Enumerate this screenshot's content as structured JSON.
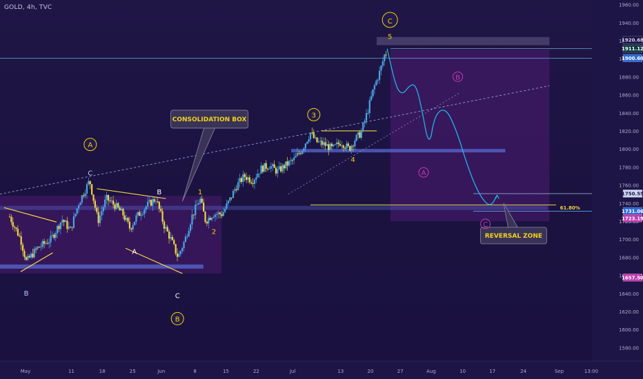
{
  "header": {
    "symbol": "GOLD, 4h, TVC"
  },
  "colors": {
    "bull": "#4aa8e8",
    "bear": "#f0d545",
    "wave": "#f5d400",
    "level": "#5a6fd8",
    "path": "#1fb5e8",
    "zone": "#4a1a6e",
    "magenta": "#c03cb0"
  },
  "chart_data": {
    "type": "candlestick",
    "title": "",
    "xlabel": "",
    "ylabel": "",
    "ylim": [
      1565,
      1965
    ],
    "grid": false,
    "y_ticks": [
      1580,
      1600,
      1620,
      1640,
      1660,
      1680,
      1700,
      1720,
      1740,
      1760,
      1780,
      1800,
      1820,
      1840,
      1860,
      1880,
      1900,
      1920,
      1940,
      1960
    ],
    "y_tick_labels": [
      "1580.00",
      "1600.00",
      "1620.00",
      "1640.00",
      "1660.00",
      "1680.00",
      "1700.00",
      "1720.00",
      "1740.00",
      "1760.00",
      "1780.00",
      "1800.00",
      "1820.00",
      "1840.00",
      "1860.00",
      "1880.00",
      "1900.00",
      "1920.00",
      "1940.00",
      "1960.00"
    ],
    "x_ticks": [
      {
        "label": "May",
        "pos": 0.0
      },
      {
        "label": "11",
        "pos": 0.083
      },
      {
        "label": "18",
        "pos": 0.139
      },
      {
        "label": "25",
        "pos": 0.194
      },
      {
        "label": "Jun",
        "pos": 0.246
      },
      {
        "label": "8",
        "pos": 0.307
      },
      {
        "label": "15",
        "pos": 0.363
      },
      {
        "label": "22",
        "pos": 0.418
      },
      {
        "label": "Jul",
        "pos": 0.484
      },
      {
        "label": "13",
        "pos": 0.571
      },
      {
        "label": "20",
        "pos": 0.625
      },
      {
        "label": "27",
        "pos": 0.679
      },
      {
        "label": "Aug",
        "pos": 0.735
      },
      {
        "label": "10",
        "pos": 0.792
      },
      {
        "label": "17",
        "pos": 0.846
      },
      {
        "label": "24",
        "pos": 0.902
      },
      {
        "label": "Sep",
        "pos": 0.967
      },
      {
        "label": "13:00",
        "pos": 1.025
      }
    ],
    "price_path": [
      [
        0.0,
        1725
      ],
      [
        0.02,
        1700
      ],
      [
        0.03,
        1675
      ],
      [
        0.05,
        1690
      ],
      [
        0.075,
        1700
      ],
      [
        0.095,
        1722
      ],
      [
        0.11,
        1710
      ],
      [
        0.125,
        1740
      ],
      [
        0.145,
        1765
      ],
      [
        0.16,
        1720
      ],
      [
        0.175,
        1745
      ],
      [
        0.19,
        1738
      ],
      [
        0.205,
        1728
      ],
      [
        0.218,
        1712
      ],
      [
        0.23,
        1725
      ],
      [
        0.25,
        1738
      ],
      [
        0.265,
        1745
      ],
      [
        0.28,
        1715
      ],
      [
        0.292,
        1700
      ],
      [
        0.305,
        1680
      ],
      [
        0.318,
        1700
      ],
      [
        0.33,
        1725
      ],
      [
        0.345,
        1745
      ],
      [
        0.355,
        1720
      ],
      [
        0.368,
        1728
      ],
      [
        0.385,
        1728
      ],
      [
        0.4,
        1745
      ],
      [
        0.41,
        1758
      ],
      [
        0.425,
        1770
      ],
      [
        0.44,
        1765
      ],
      [
        0.455,
        1778
      ],
      [
        0.47,
        1782
      ],
      [
        0.485,
        1775
      ],
      [
        0.5,
        1782
      ],
      [
        0.515,
        1788
      ],
      [
        0.53,
        1800
      ],
      [
        0.545,
        1818
      ],
      [
        0.555,
        1808
      ],
      [
        0.57,
        1805
      ],
      [
        0.585,
        1800
      ],
      [
        0.6,
        1808
      ],
      [
        0.615,
        1800
      ],
      [
        0.625,
        1810
      ],
      [
        0.637,
        1818
      ],
      [
        0.65,
        1845
      ],
      [
        0.66,
        1868
      ],
      [
        0.672,
        1888
      ],
      [
        0.68,
        1906
      ]
    ],
    "levels": [
      {
        "label": "1920.68",
        "value": 1920.68,
        "bg": "#1b1444",
        "fg": "#d9d4ec"
      },
      {
        "label": "1911.12",
        "value": 1911.12,
        "bg": "#0f3e42",
        "fg": "#ffffff"
      },
      {
        "label": "1900.60",
        "value": 1900.6,
        "bg": "#2e6bd8",
        "fg": "#ffffff"
      },
      {
        "label": "1750.55",
        "value": 1750.55,
        "bg": "#cfd7f4",
        "fg": "#1b1444"
      },
      {
        "label": "1731.06",
        "value": 1731.06,
        "bg": "#2e6bd8",
        "fg": "#ffffff"
      },
      {
        "label": "1723.19",
        "value": 1723.19,
        "bg": "#c03cb0",
        "fg": "#ffffff"
      },
      {
        "label": "1657.50",
        "value": 1657.5,
        "bg": "#c03cb0",
        "fg": "#ffffff"
      }
    ],
    "projection": [
      [
        0.684,
        1911
      ],
      [
        0.7,
        1868
      ],
      [
        0.712,
        1860
      ],
      [
        0.724,
        1870
      ],
      [
        0.735,
        1872
      ],
      [
        0.745,
        1850
      ],
      [
        0.76,
        1800
      ],
      [
        0.77,
        1838
      ],
      [
        0.79,
        1846
      ],
      [
        0.81,
        1820
      ],
      [
        0.83,
        1780
      ],
      [
        0.85,
        1750
      ],
      [
        0.87,
        1735
      ],
      [
        0.883,
        1748
      ]
    ],
    "fib_label": "61.80%",
    "annotations": {
      "consolidation": "CONSOLIDATION BOX",
      "reversal": "REVERSAL ZONE"
    },
    "wave_labels": [
      {
        "text": "C",
        "x": 0.689,
        "v": 1943,
        "circle": true,
        "big": true,
        "color": "#f5d400"
      },
      {
        "text": "5",
        "x": 0.689,
        "v": 1924,
        "color": "#f5d400"
      },
      {
        "text": "3",
        "x": 0.551,
        "v": 1838,
        "circle": true,
        "color": "#f5d400"
      },
      {
        "text": "4",
        "x": 0.622,
        "v": 1788,
        "color": "#f5d400"
      },
      {
        "text": "A",
        "x": 0.146,
        "v": 1805,
        "circle": true,
        "color": "#f5d400"
      },
      {
        "text": "C",
        "x": 0.146,
        "v": 1773,
        "color": "#b7c6ff"
      },
      {
        "text": "B",
        "x": 0.271,
        "v": 1752,
        "color": "#ffffff"
      },
      {
        "text": "1",
        "x": 0.345,
        "v": 1752,
        "color": "#f5d400"
      },
      {
        "text": "2",
        "x": 0.37,
        "v": 1708,
        "color": "#f5d400"
      },
      {
        "text": "A",
        "x": 0.226,
        "v": 1686,
        "color": "#ffffff"
      },
      {
        "text": "B",
        "x": 0.03,
        "v": 1640,
        "color": "#b7c6ff"
      },
      {
        "text": "C",
        "x": 0.304,
        "v": 1637,
        "color": "#ffffff"
      },
      {
        "text": "B",
        "x": 0.304,
        "v": 1612,
        "circle": true,
        "color": "#f5d400"
      },
      {
        "text": "B",
        "x": 0.812,
        "v": 1880,
        "circle": true,
        "small": true,
        "color": "#c03cb0"
      },
      {
        "text": "A",
        "x": 0.75,
        "v": 1774,
        "circle": true,
        "small": true,
        "color": "#c03cb0"
      },
      {
        "text": "C",
        "x": 0.862,
        "v": 1717,
        "circle": true,
        "small": true,
        "color": "#c03cb0"
      }
    ]
  }
}
